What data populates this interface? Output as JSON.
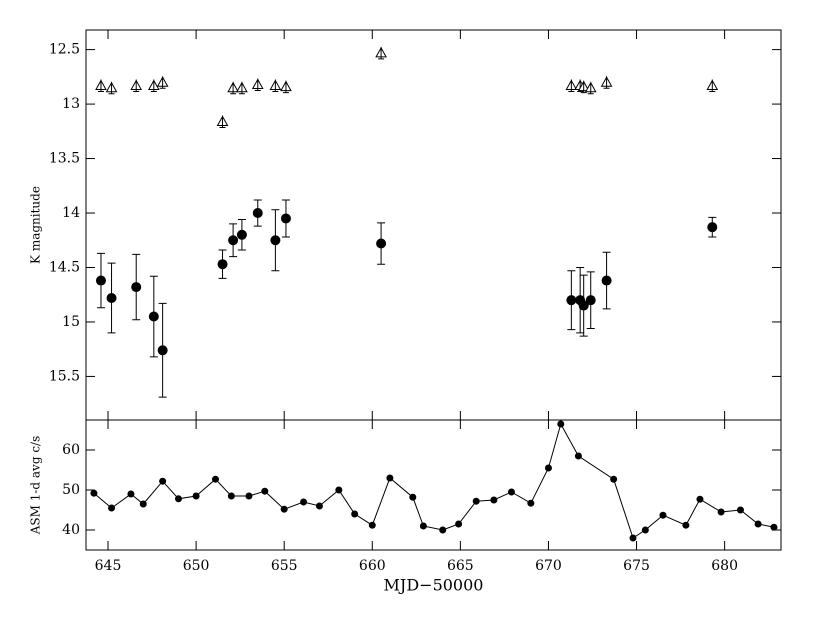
{
  "chart_data": [
    {
      "type": "scatter",
      "ylabel": "K magnitude",
      "xlim": [
        643.75,
        683.2
      ],
      "xticks": [
        645,
        650,
        655,
        660,
        665,
        670,
        675,
        680
      ],
      "ylim": [
        15.9,
        12.32
      ],
      "yticks": [
        12.5,
        13,
        13.5,
        14,
        14.5,
        15,
        15.5
      ],
      "series": [
        {
          "marker": "circle",
          "color": "#000000",
          "x": [
            644.6,
            645.2,
            646.6,
            647.6,
            648.1,
            651.5,
            652.1,
            652.6,
            653.5,
            654.5,
            655.1,
            660.5,
            671.3,
            671.8,
            672.0,
            672.4,
            673.3,
            679.3
          ],
          "values": [
            14.62,
            14.78,
            14.68,
            14.95,
            15.26,
            14.47,
            14.25,
            14.2,
            14.0,
            14.25,
            14.05,
            14.28,
            14.8,
            14.8,
            14.85,
            14.8,
            14.62,
            14.13
          ],
          "errors": [
            0.25,
            0.32,
            0.3,
            0.37,
            0.43,
            0.13,
            0.15,
            0.14,
            0.12,
            0.28,
            0.17,
            0.19,
            0.27,
            0.3,
            0.28,
            0.26,
            0.26,
            0.09
          ]
        },
        {
          "marker": "triangle",
          "color": "#000000",
          "x": [
            644.6,
            645.2,
            646.6,
            647.6,
            648.1,
            651.5,
            652.1,
            652.6,
            653.5,
            654.5,
            655.1,
            660.5,
            671.3,
            671.8,
            672.0,
            672.4,
            673.3,
            679.3
          ],
          "values": [
            12.83,
            12.85,
            12.83,
            12.83,
            12.8,
            13.16,
            12.85,
            12.85,
            12.82,
            12.83,
            12.84,
            12.53,
            12.83,
            12.83,
            12.84,
            12.85,
            12.8,
            12.83
          ]
        }
      ]
    },
    {
      "type": "line",
      "ylabel": "ASM 1-d avg c/s",
      "xlabel": "MJD−50000",
      "color": "#000000",
      "xlim": [
        643.75,
        683.2
      ],
      "xticks": [
        645,
        650,
        655,
        660,
        665,
        670,
        675,
        680
      ],
      "ylim": [
        35,
        67.5
      ],
      "yticks": [
        40,
        50,
        60
      ],
      "x": [
        644.2,
        645.2,
        646.3,
        647.0,
        648.1,
        649.0,
        650.0,
        651.1,
        652.0,
        653.0,
        653.9,
        655.0,
        656.1,
        657.0,
        658.1,
        659.0,
        660.0,
        661.0,
        662.3,
        662.9,
        664.0,
        664.9,
        665.9,
        666.9,
        667.9,
        669.0,
        670.0,
        670.7,
        671.7,
        673.7,
        674.8,
        675.5,
        676.5,
        677.8,
        678.6,
        679.8,
        680.9,
        681.9,
        682.8
      ],
      "values": [
        49.2,
        45.5,
        49,
        46.5,
        52.2,
        47.8,
        48.5,
        52.7,
        48.5,
        48.5,
        49.7,
        45.2,
        47,
        46,
        50,
        44,
        41.2,
        53,
        48.2,
        41,
        40,
        41.5,
        47.2,
        47.5,
        49.5,
        46.7,
        55.5,
        66.5,
        58.5,
        52.7,
        38,
        40,
        43.7,
        41.2,
        47.7,
        44.5,
        45,
        41.5,
        40.7
      ]
    }
  ]
}
